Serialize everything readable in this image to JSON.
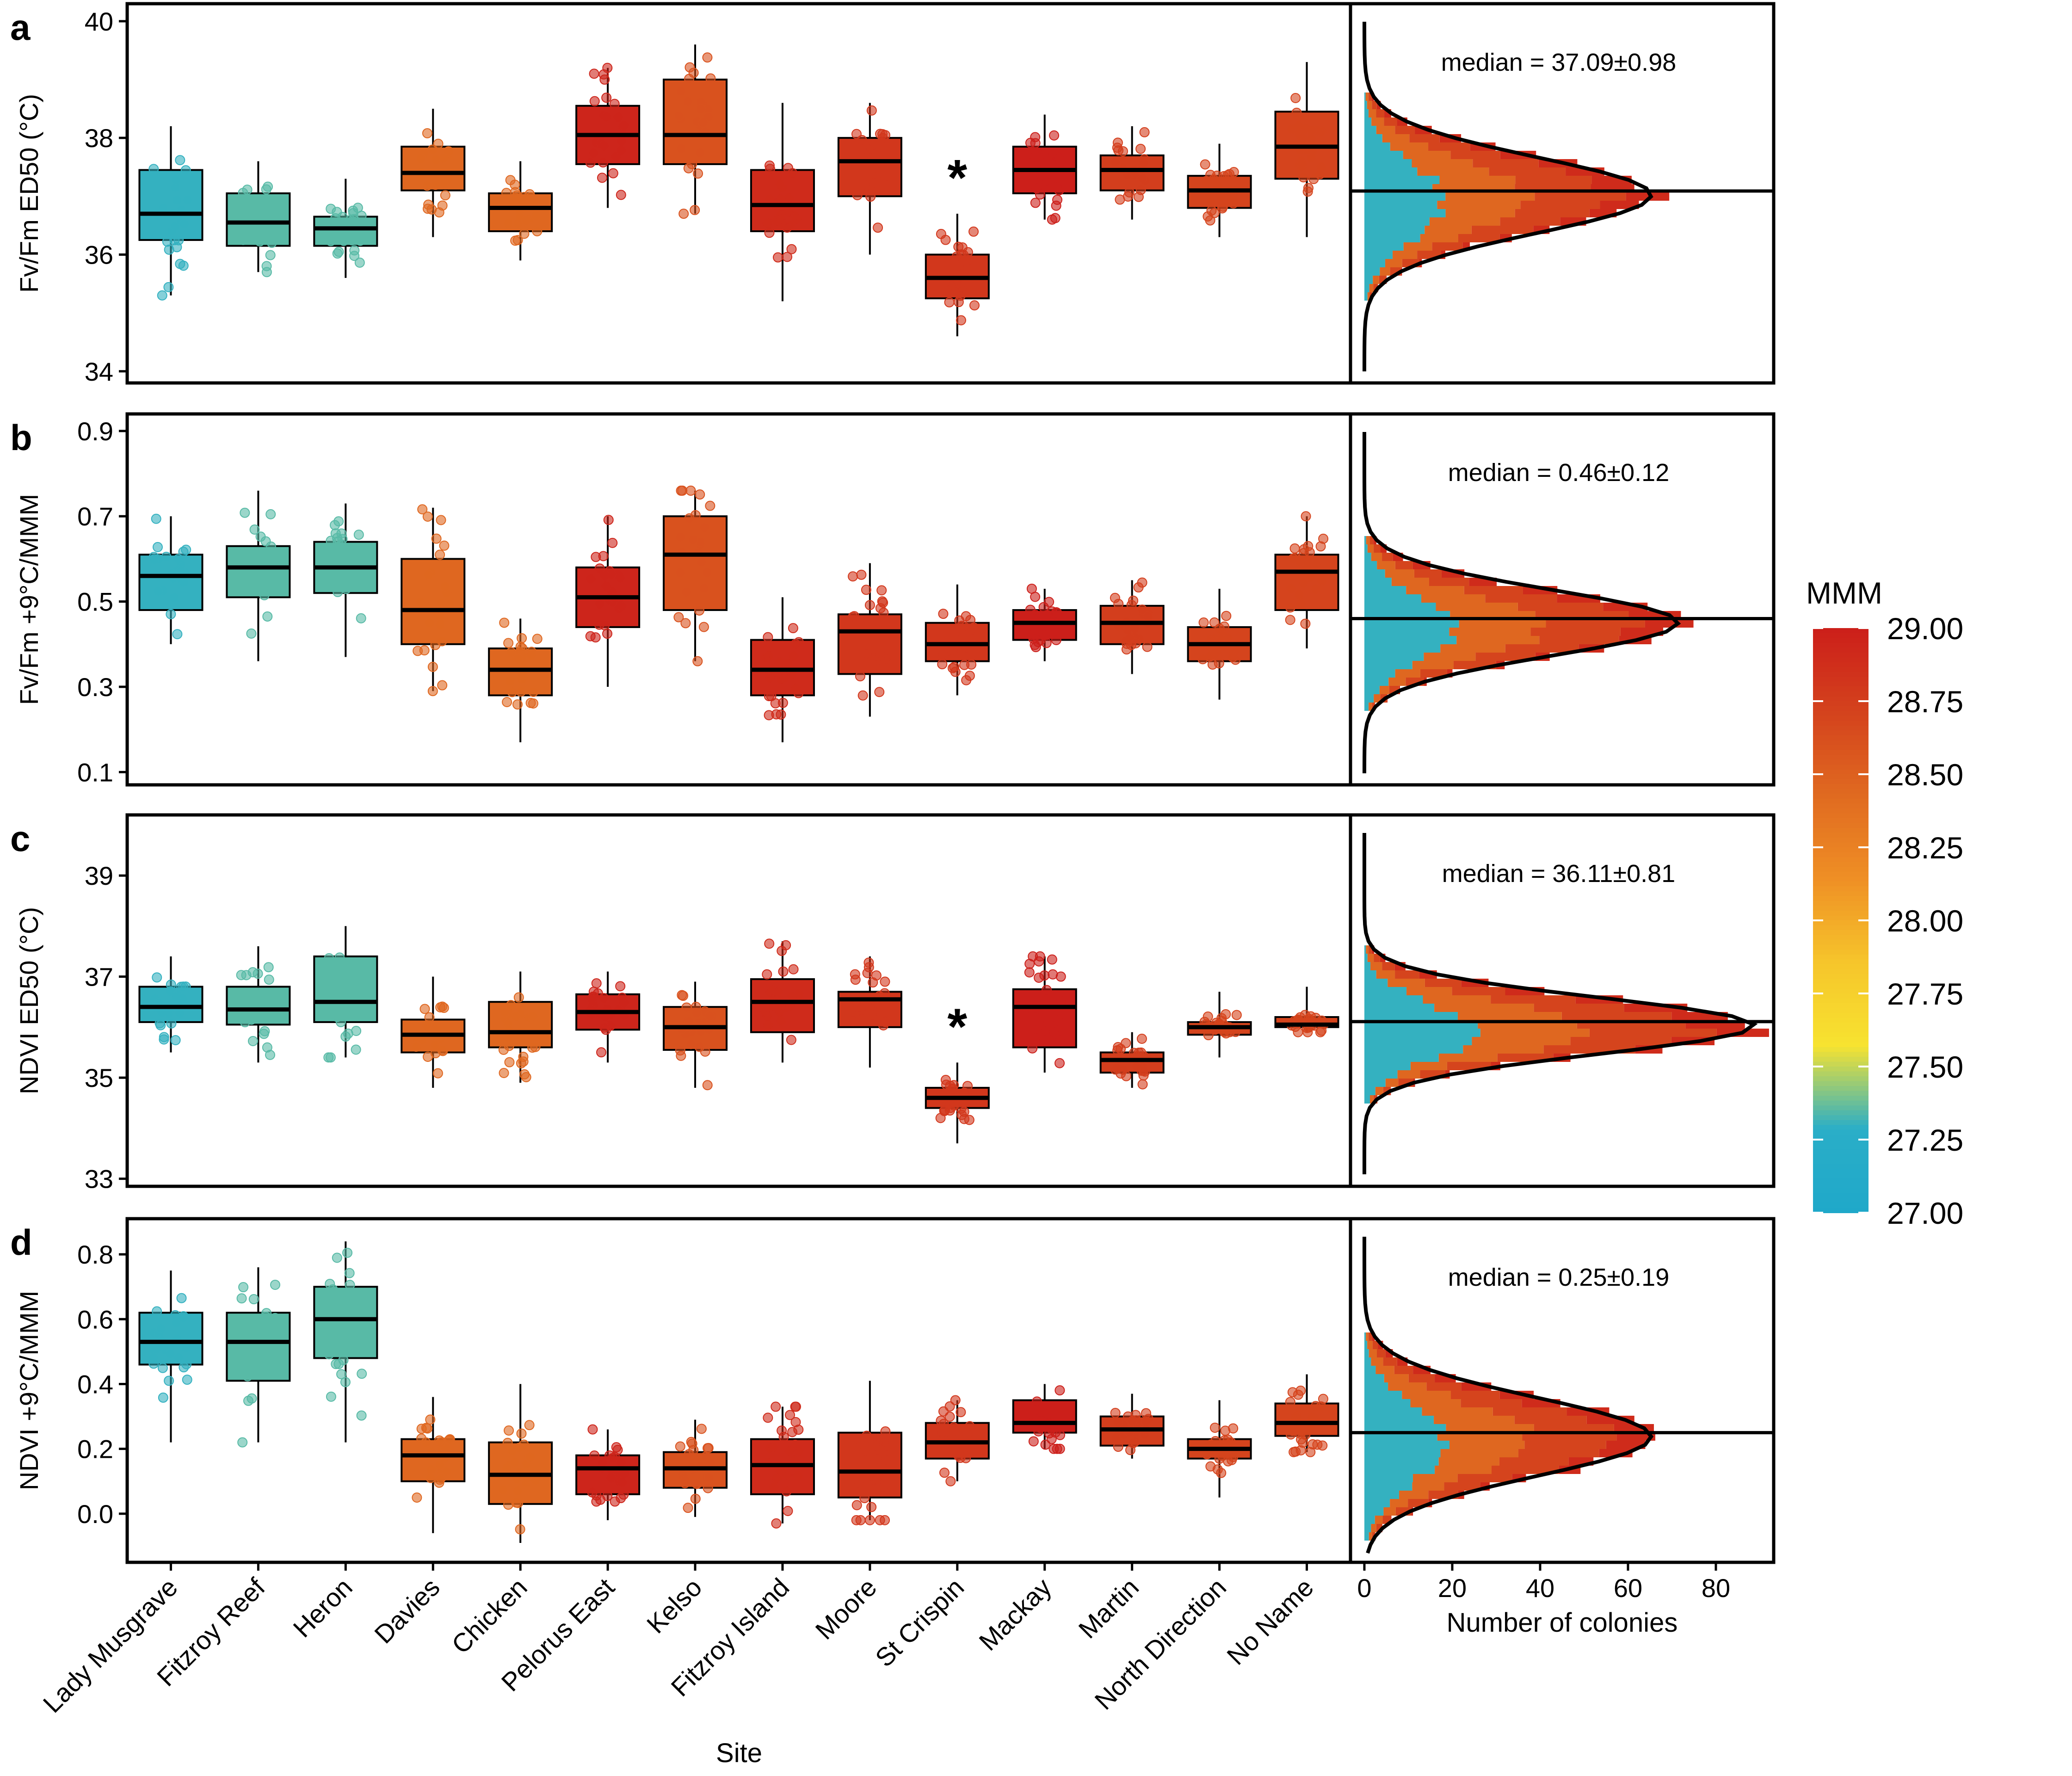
{
  "figure": {
    "x_axis_title": "Site",
    "hist_x_axis_title": "Number of colonies",
    "hist_x_ticks": [
      0,
      20,
      40,
      60,
      80
    ],
    "hist_xlim": [
      0,
      90
    ],
    "sites": [
      "Lady Musgrave",
      "Fitzroy Reef",
      "Heron",
      "Davies",
      "Chicken",
      "Pelorus East",
      "Kelso",
      "Fitzroy Island",
      "Moore",
      "St Crispin",
      "Mackay",
      "Martin",
      "North Direction",
      "No Name"
    ]
  },
  "legend": {
    "title": "MMM",
    "ticks": [
      "29.00",
      "28.75",
      "28.50",
      "28.25",
      "28.00",
      "27.75",
      "27.50",
      "27.25",
      "27.00"
    ],
    "range": [
      27.0,
      29.0
    ],
    "colors": [
      "#1fa8c9",
      "#2aaec8",
      "#f7e330",
      "#f6c52b",
      "#ef8f25",
      "#e06a20",
      "#d4421d",
      "#cc1f1a"
    ]
  },
  "chart_data": [
    {
      "type": "box",
      "panel": "a",
      "ylabel": "Fv/Fm ED50 (°C)",
      "ylim": [
        33.8,
        40.3
      ],
      "yticks": [
        34,
        36,
        38,
        40
      ],
      "categories": [
        "Lady Musgrave",
        "Fitzroy Reef",
        "Heron",
        "Davies",
        "Chicken",
        "Pelorus East",
        "Kelso",
        "Fitzroy Island",
        "Moore",
        "St Crispin",
        "Mackay",
        "Martin",
        "North Direction",
        "No Name"
      ],
      "mmm": [
        27.3,
        27.35,
        27.35,
        28.45,
        28.45,
        28.95,
        28.6,
        28.9,
        28.8,
        28.8,
        29.0,
        28.75,
        28.7,
        28.7
      ],
      "boxes": [
        {
          "min": 35.3,
          "q1": 36.25,
          "median": 36.7,
          "q3": 37.45,
          "max": 38.2
        },
        {
          "min": 35.7,
          "q1": 36.15,
          "median": 36.55,
          "q3": 37.05,
          "max": 37.6
        },
        {
          "min": 35.6,
          "q1": 36.15,
          "median": 36.45,
          "q3": 36.65,
          "max": 37.3
        },
        {
          "min": 36.3,
          "q1": 37.1,
          "median": 37.4,
          "q3": 37.85,
          "max": 38.5
        },
        {
          "min": 35.9,
          "q1": 36.4,
          "median": 36.8,
          "q3": 37.05,
          "max": 37.6
        },
        {
          "min": 36.8,
          "q1": 37.55,
          "median": 38.05,
          "q3": 38.55,
          "max": 39.2
        },
        {
          "min": 36.7,
          "q1": 37.55,
          "median": 38.05,
          "q3": 39.0,
          "max": 39.6
        },
        {
          "min": 35.2,
          "q1": 36.4,
          "median": 36.85,
          "q3": 37.45,
          "max": 38.6
        },
        {
          "min": 36.0,
          "q1": 37.0,
          "median": 37.6,
          "q3": 38.0,
          "max": 38.6
        },
        {
          "min": 34.6,
          "q1": 35.25,
          "median": 35.6,
          "q3": 36.0,
          "max": 36.7
        },
        {
          "min": 36.6,
          "q1": 37.05,
          "median": 37.45,
          "q3": 37.85,
          "max": 38.4
        },
        {
          "min": 36.6,
          "q1": 37.1,
          "median": 37.45,
          "q3": 37.7,
          "max": 38.2
        },
        {
          "min": 36.3,
          "q1": 36.8,
          "median": 37.1,
          "q3": 37.35,
          "max": 37.9
        },
        {
          "min": 36.3,
          "q1": 37.3,
          "median": 37.85,
          "q3": 38.45,
          "max": 39.3
        }
      ],
      "asterisk_site": "St Crispin",
      "median_label": "median = 37.09±0.98",
      "overall_median": 37.09,
      "hist_peak": 64
    },
    {
      "type": "box",
      "panel": "b",
      "ylabel": "Fv/Fm +9°C/MMM",
      "ylim": [
        0.07,
        0.94
      ],
      "yticks": [
        0.1,
        0.3,
        0.5,
        0.7,
        0.9
      ],
      "categories": [
        "Lady Musgrave",
        "Fitzroy Reef",
        "Heron",
        "Davies",
        "Chicken",
        "Pelorus East",
        "Kelso",
        "Fitzroy Island",
        "Moore",
        "St Crispin",
        "Mackay",
        "Martin",
        "North Direction",
        "No Name"
      ],
      "mmm": [
        27.3,
        27.35,
        27.35,
        28.45,
        28.45,
        28.95,
        28.6,
        28.9,
        28.8,
        28.8,
        29.0,
        28.75,
        28.7,
        28.7
      ],
      "boxes": [
        {
          "min": 0.4,
          "q1": 0.48,
          "median": 0.56,
          "q3": 0.61,
          "max": 0.7
        },
        {
          "min": 0.36,
          "q1": 0.51,
          "median": 0.58,
          "q3": 0.63,
          "max": 0.76
        },
        {
          "min": 0.37,
          "q1": 0.52,
          "median": 0.58,
          "q3": 0.64,
          "max": 0.73
        },
        {
          "min": 0.29,
          "q1": 0.4,
          "median": 0.48,
          "q3": 0.6,
          "max": 0.72
        },
        {
          "min": 0.17,
          "q1": 0.28,
          "median": 0.34,
          "q3": 0.39,
          "max": 0.46
        },
        {
          "min": 0.3,
          "q1": 0.44,
          "median": 0.51,
          "q3": 0.58,
          "max": 0.7
        },
        {
          "min": 0.36,
          "q1": 0.48,
          "median": 0.61,
          "q3": 0.7,
          "max": 0.76
        },
        {
          "min": 0.17,
          "q1": 0.28,
          "median": 0.34,
          "q3": 0.41,
          "max": 0.51
        },
        {
          "min": 0.23,
          "q1": 0.33,
          "median": 0.43,
          "q3": 0.47,
          "max": 0.59
        },
        {
          "min": 0.28,
          "q1": 0.36,
          "median": 0.4,
          "q3": 0.45,
          "max": 0.54
        },
        {
          "min": 0.36,
          "q1": 0.41,
          "median": 0.45,
          "q3": 0.48,
          "max": 0.53
        },
        {
          "min": 0.33,
          "q1": 0.4,
          "median": 0.45,
          "q3": 0.49,
          "max": 0.55
        },
        {
          "min": 0.27,
          "q1": 0.36,
          "median": 0.4,
          "q3": 0.44,
          "max": 0.53
        },
        {
          "min": 0.39,
          "q1": 0.48,
          "median": 0.57,
          "q3": 0.61,
          "max": 0.7
        }
      ],
      "asterisk_site": "",
      "median_label": "median = 0.46±0.12",
      "overall_median": 0.46,
      "hist_peak": 70
    },
    {
      "type": "box",
      "panel": "c",
      "ylabel": "NDVI ED50 (°C)",
      "ylim": [
        32.85,
        40.2
      ],
      "yticks": [
        33,
        35,
        37,
        39
      ],
      "categories": [
        "Lady Musgrave",
        "Fitzroy Reef",
        "Heron",
        "Davies",
        "Chicken",
        "Pelorus East",
        "Kelso",
        "Fitzroy Island",
        "Moore",
        "St Crispin",
        "Mackay",
        "Martin",
        "North Direction",
        "No Name"
      ],
      "mmm": [
        27.3,
        27.35,
        27.35,
        28.45,
        28.45,
        28.95,
        28.6,
        28.9,
        28.8,
        28.8,
        29.0,
        28.75,
        28.7,
        28.7
      ],
      "boxes": [
        {
          "min": 35.5,
          "q1": 36.1,
          "median": 36.4,
          "q3": 36.8,
          "max": 37.4
        },
        {
          "min": 35.3,
          "q1": 36.05,
          "median": 36.35,
          "q3": 36.8,
          "max": 37.6
        },
        {
          "min": 35.4,
          "q1": 36.1,
          "median": 36.5,
          "q3": 37.4,
          "max": 38.0
        },
        {
          "min": 34.8,
          "q1": 35.5,
          "median": 35.85,
          "q3": 36.15,
          "max": 37.0
        },
        {
          "min": 34.9,
          "q1": 35.6,
          "median": 35.9,
          "q3": 36.5,
          "max": 37.1
        },
        {
          "min": 35.3,
          "q1": 35.95,
          "median": 36.3,
          "q3": 36.65,
          "max": 37.1
        },
        {
          "min": 34.8,
          "q1": 35.55,
          "median": 36.0,
          "q3": 36.4,
          "max": 36.9
        },
        {
          "min": 35.3,
          "q1": 35.9,
          "median": 36.5,
          "q3": 36.95,
          "max": 37.7
        },
        {
          "min": 35.2,
          "q1": 36.0,
          "median": 36.55,
          "q3": 36.7,
          "max": 37.4
        },
        {
          "min": 33.7,
          "q1": 34.4,
          "median": 34.6,
          "q3": 34.8,
          "max": 35.3
        },
        {
          "min": 35.1,
          "q1": 35.6,
          "median": 36.4,
          "q3": 36.75,
          "max": 37.4
        },
        {
          "min": 34.8,
          "q1": 35.1,
          "median": 35.35,
          "q3": 35.5,
          "max": 35.9
        },
        {
          "min": 35.4,
          "q1": 35.85,
          "median": 36.0,
          "q3": 36.1,
          "max": 36.7
        },
        {
          "min": 35.9,
          "q1": 36.0,
          "median": 36.05,
          "q3": 36.2,
          "max": 36.8
        }
      ],
      "asterisk_site": "St Crispin",
      "median_label": "median = 36.11±0.81",
      "overall_median": 36.11,
      "hist_peak": 87
    },
    {
      "type": "box",
      "panel": "d",
      "ylabel": "NDVI +9°C/MMM",
      "ylim": [
        -0.15,
        0.91
      ],
      "yticks": [
        0.0,
        0.2,
        0.4,
        0.6,
        0.8
      ],
      "ytick_labels": [
        "0.0",
        "0.2",
        "0.4",
        "0.6",
        "0.8"
      ],
      "categories": [
        "Lady Musgrave",
        "Fitzroy Reef",
        "Heron",
        "Davies",
        "Chicken",
        "Pelorus East",
        "Kelso",
        "Fitzroy Island",
        "Moore",
        "St Crispin",
        "Mackay",
        "Martin",
        "North Direction",
        "No Name"
      ],
      "mmm": [
        27.3,
        27.35,
        27.35,
        28.45,
        28.45,
        28.95,
        28.6,
        28.9,
        28.8,
        28.8,
        29.0,
        28.75,
        28.7,
        28.7
      ],
      "boxes": [
        {
          "min": 0.22,
          "q1": 0.46,
          "median": 0.53,
          "q3": 0.62,
          "max": 0.75
        },
        {
          "min": 0.22,
          "q1": 0.41,
          "median": 0.53,
          "q3": 0.62,
          "max": 0.76
        },
        {
          "min": 0.22,
          "q1": 0.48,
          "median": 0.6,
          "q3": 0.7,
          "max": 0.84
        },
        {
          "min": -0.06,
          "q1": 0.1,
          "median": 0.18,
          "q3": 0.23,
          "max": 0.36
        },
        {
          "min": -0.09,
          "q1": 0.03,
          "median": 0.12,
          "q3": 0.22,
          "max": 0.4
        },
        {
          "min": -0.02,
          "q1": 0.06,
          "median": 0.14,
          "q3": 0.18,
          "max": 0.26
        },
        {
          "min": -0.01,
          "q1": 0.08,
          "median": 0.14,
          "q3": 0.19,
          "max": 0.29
        },
        {
          "min": -0.03,
          "q1": 0.06,
          "median": 0.15,
          "q3": 0.23,
          "max": 0.33
        },
        {
          "min": -0.02,
          "q1": 0.05,
          "median": 0.13,
          "q3": 0.25,
          "max": 0.41
        },
        {
          "min": 0.1,
          "q1": 0.17,
          "median": 0.22,
          "q3": 0.28,
          "max": 0.35
        },
        {
          "min": 0.2,
          "q1": 0.25,
          "median": 0.28,
          "q3": 0.35,
          "max": 0.4
        },
        {
          "min": 0.17,
          "q1": 0.21,
          "median": 0.26,
          "q3": 0.3,
          "max": 0.37
        },
        {
          "min": 0.05,
          "q1": 0.17,
          "median": 0.2,
          "q3": 0.23,
          "max": 0.35
        },
        {
          "min": 0.19,
          "q1": 0.24,
          "median": 0.28,
          "q3": 0.34,
          "max": 0.43
        }
      ],
      "asterisk_site": "",
      "median_label": "median = 0.25±0.19",
      "overall_median": 0.25,
      "hist_peak": 64
    }
  ]
}
